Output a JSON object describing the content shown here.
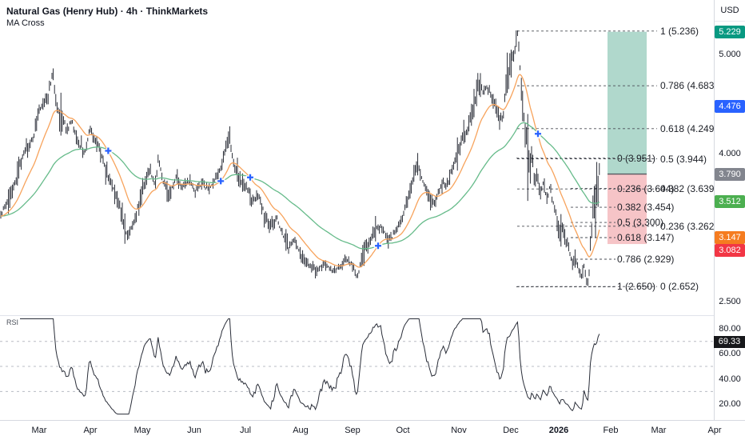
{
  "header": {
    "title": "Natural Gas (Henry Hub) · 4h · ThinkMarkets",
    "indicator": "MA Cross",
    "currency": "USD"
  },
  "price_axis": {
    "ticks": [
      {
        "label": "5.000",
        "value": 5.0
      },
      {
        "label": "4.000",
        "value": 4.0
      },
      {
        "label": "2.500",
        "value": 2.5
      }
    ],
    "badges": [
      {
        "label": "5.229",
        "value": 5.229,
        "color": "#089981"
      },
      {
        "label": "4.476",
        "value": 4.476,
        "color": "#2962ff"
      },
      {
        "label": "3.790",
        "value": 3.79,
        "color": "#82858e"
      },
      {
        "label": "3.512",
        "value": 3.512,
        "color": "#4caf50"
      },
      {
        "label": "3.147",
        "value": 3.147,
        "color": "#f57c20"
      },
      {
        "label": "3.082",
        "value": 3.082,
        "color": "#f23645"
      }
    ]
  },
  "time_axis": {
    "months": [
      {
        "label": "Mar"
      },
      {
        "label": "Apr"
      },
      {
        "label": "May"
      },
      {
        "label": "Jun"
      },
      {
        "label": "Jul"
      },
      {
        "label": "Aug"
      },
      {
        "label": "Sep"
      },
      {
        "label": "Oct"
      },
      {
        "label": "Nov"
      },
      {
        "label": "Dec"
      },
      {
        "label": "2026",
        "bold": true
      },
      {
        "label": "Feb"
      },
      {
        "label": "Mar"
      },
      {
        "label": "Apr"
      }
    ]
  },
  "rsi_panel": {
    "label": "RSI",
    "last_value": "69.33",
    "ticks": [
      {
        "label": "80.00",
        "value": 80
      },
      {
        "label": "60.00",
        "value": 60
      },
      {
        "label": "40.00",
        "value": 40
      },
      {
        "label": "20.00",
        "value": 20
      }
    ],
    "dashed_levels": [
      70,
      50,
      30
    ]
  },
  "chart_data": {
    "type": "candlestick",
    "symbol": "Natural Gas (Henry Hub)",
    "timeframe": "4h",
    "broker": "ThinkMarkets",
    "currency": "USD",
    "ylim": [
      2.5,
      5.3
    ],
    "x_axis_months": [
      "Mar",
      "Apr",
      "May",
      "Jun",
      "Jul",
      "Aug",
      "Sep",
      "Oct",
      "Nov",
      "Dec",
      "2026",
      "Feb",
      "Mar",
      "Apr"
    ],
    "price_path_anchors": [
      [
        0,
        3.35
      ],
      [
        8,
        3.49
      ],
      [
        16,
        3.61
      ],
      [
        24,
        3.85
      ],
      [
        30,
        4.01
      ],
      [
        36,
        4.07
      ],
      [
        42,
        4.16
      ],
      [
        48,
        4.42
      ],
      [
        54,
        4.51
      ],
      [
        60,
        4.56
      ],
      [
        66,
        4.82
      ],
      [
        70,
        4.5
      ],
      [
        75,
        4.35
      ],
      [
        80,
        4.3
      ],
      [
        85,
        4.24
      ],
      [
        90,
        4.35
      ],
      [
        95,
        4.16
      ],
      [
        100,
        4.07
      ],
      [
        107,
        4.01
      ],
      [
        112,
        4.24
      ],
      [
        118,
        4.14
      ],
      [
        124,
        4.05
      ],
      [
        130,
        3.89
      ],
      [
        137,
        3.73
      ],
      [
        145,
        3.57
      ],
      [
        152,
        3.37
      ],
      [
        160,
        3.14
      ],
      [
        166,
        3.28
      ],
      [
        172,
        3.43
      ],
      [
        180,
        3.69
      ],
      [
        188,
        3.82
      ],
      [
        195,
        3.67
      ],
      [
        198,
        3.95
      ],
      [
        204,
        3.71
      ],
      [
        212,
        3.58
      ],
      [
        220,
        3.75
      ],
      [
        228,
        3.67
      ],
      [
        236,
        3.72
      ],
      [
        244,
        3.62
      ],
      [
        252,
        3.7
      ],
      [
        260,
        3.64
      ],
      [
        268,
        3.71
      ],
      [
        276,
        3.85
      ],
      [
        283,
        4.03
      ],
      [
        287,
        4.19
      ],
      [
        292,
        3.89
      ],
      [
        298,
        3.75
      ],
      [
        304,
        3.69
      ],
      [
        309,
        3.67
      ],
      [
        316,
        3.51
      ],
      [
        323,
        3.59
      ],
      [
        331,
        3.37
      ],
      [
        339,
        3.24
      ],
      [
        346,
        3.35
      ],
      [
        353,
        3.2
      ],
      [
        361,
        3.04
      ],
      [
        369,
        3.12
      ],
      [
        376,
        2.97
      ],
      [
        386,
        2.88
      ],
      [
        396,
        2.8
      ],
      [
        406,
        2.88
      ],
      [
        416,
        2.8
      ],
      [
        424,
        2.83
      ],
      [
        432,
        2.92
      ],
      [
        440,
        2.87
      ],
      [
        447,
        2.74
      ],
      [
        455,
        3.03
      ],
      [
        462,
        3.11
      ],
      [
        470,
        3.24
      ],
      [
        476,
        3.28
      ],
      [
        482,
        3.17
      ],
      [
        488,
        3.11
      ],
      [
        494,
        3.2
      ],
      [
        500,
        3.26
      ],
      [
        506,
        3.43
      ],
      [
        512,
        3.57
      ],
      [
        518,
        3.77
      ],
      [
        523,
        3.86
      ],
      [
        528,
        3.75
      ],
      [
        534,
        3.61
      ],
      [
        539,
        3.52
      ],
      [
        544,
        3.49
      ],
      [
        549,
        3.61
      ],
      [
        554,
        3.7
      ],
      [
        559,
        3.67
      ],
      [
        564,
        3.8
      ],
      [
        569,
        3.92
      ],
      [
        574,
        4.04
      ],
      [
        579,
        4.17
      ],
      [
        584,
        4.22
      ],
      [
        589,
        4.34
      ],
      [
        593,
        4.5
      ],
      [
        597,
        4.65
      ],
      [
        600,
        4.73
      ],
      [
        604,
        4.61
      ],
      [
        608,
        4.69
      ],
      [
        612,
        4.65
      ],
      [
        616,
        4.56
      ],
      [
        620,
        4.45
      ],
      [
        624,
        4.36
      ],
      [
        627,
        4.33
      ],
      [
        630,
        4.42
      ],
      [
        634,
        4.77
      ],
      [
        638,
        4.84
      ],
      [
        642,
        4.98
      ],
      [
        645,
        5.11
      ],
      [
        648,
        5.24
      ],
      [
        651,
        4.81
      ],
      [
        654,
        4.48
      ],
      [
        657,
        4.24
      ],
      [
        660,
        3.96
      ],
      [
        663,
        3.85
      ],
      [
        666,
        3.94
      ],
      [
        669,
        3.69
      ],
      [
        672,
        3.8
      ],
      [
        676,
        3.57
      ],
      [
        680,
        3.72
      ],
      [
        684,
        3.53
      ],
      [
        688,
        3.68
      ],
      [
        692,
        3.49
      ],
      [
        696,
        3.37
      ],
      [
        700,
        3.2
      ],
      [
        704,
        3.24
      ],
      [
        708,
        3.12
      ],
      [
        712,
        3.04
      ],
      [
        716,
        2.88
      ],
      [
        720,
        2.95
      ],
      [
        724,
        2.8
      ],
      [
        728,
        2.75
      ],
      [
        731,
        2.87
      ],
      [
        734,
        2.72
      ],
      [
        736,
        2.67
      ],
      [
        739,
        3.12
      ],
      [
        742,
        3.37
      ],
      [
        744,
        3.52
      ],
      [
        746,
        3.44
      ],
      [
        748,
        3.68
      ],
      [
        750,
        3.79
      ]
    ],
    "ma_fast": {
      "name": "MA fast",
      "color": "#f7a35c",
      "last_value": 3.147
    },
    "ma_slow": {
      "name": "MA slow",
      "color": "#66bb8a",
      "last_value": 3.512
    },
    "ma_cross_marker_color": "#2962ff",
    "last_cross_value": 4.476,
    "current_price": 3.79,
    "fib_retracement_outer": {
      "direction": "low 2.652 to high 5.236",
      "levels": [
        {
          "level": "1",
          "price": "5.236"
        },
        {
          "level": "0.786",
          "price": "4.683"
        },
        {
          "level": "0.618",
          "price": "4.249"
        },
        {
          "level": "0.5",
          "price": "3.944"
        },
        {
          "level": "0.382",
          "price": "3.639"
        },
        {
          "level": "0.236",
          "price": "3.262"
        },
        {
          "level": "0",
          "price": "2.652"
        }
      ]
    },
    "fib_retracement_inner": {
      "direction": "high 3.951 to low 2.650",
      "levels": [
        {
          "level": "0",
          "price": "3.951"
        },
        {
          "level": "0.236",
          "price": "3.644"
        },
        {
          "level": "0.382",
          "price": "3.454"
        },
        {
          "level": "0.5",
          "price": "3.300"
        },
        {
          "level": "0.618",
          "price": "3.147"
        },
        {
          "level": "0.786",
          "price": "2.929"
        },
        {
          "level": "1",
          "price": "2.650"
        }
      ]
    },
    "position_tool": {
      "type": "long",
      "target": 5.229,
      "entry": 3.79,
      "stop": 3.082,
      "profit_zone_color": "#b0d8cc",
      "loss_zone_color": "#f6c4c7"
    },
    "rsi": {
      "period_label": "RSI",
      "last_value": 69.33,
      "overbought": 70,
      "oversold": 30
    }
  }
}
